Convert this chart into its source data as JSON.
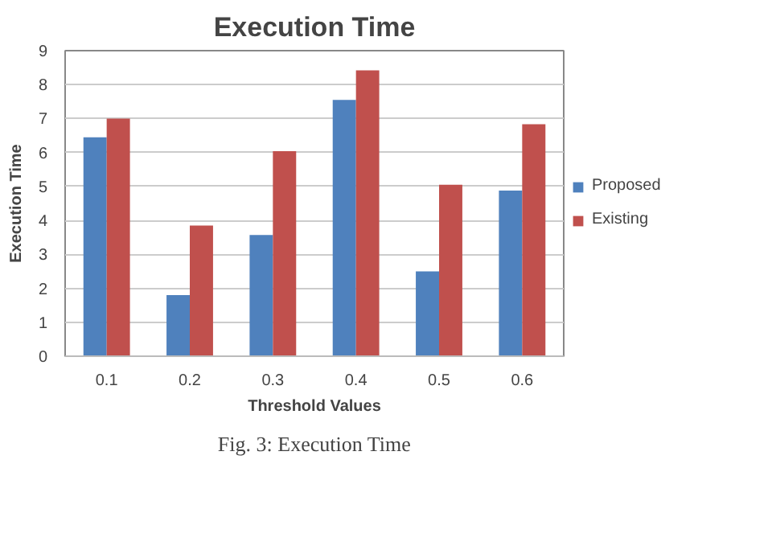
{
  "chart_data": {
    "type": "bar",
    "title": "Execution Time",
    "xlabel": "Threshold Values",
    "ylabel": "Execution Time",
    "categories": [
      "0.1",
      "0.2",
      "0.3",
      "0.4",
      "0.5",
      "0.6"
    ],
    "series": [
      {
        "name": "Proposed",
        "color": "#4f81bd",
        "values": [
          6.45,
          1.8,
          3.57,
          7.55,
          2.5,
          4.88
        ]
      },
      {
        "name": "Existing",
        "color": "#c0504d",
        "values": [
          7.0,
          3.85,
          6.04,
          8.42,
          5.05,
          6.83
        ]
      }
    ],
    "ylim": [
      0,
      9
    ],
    "yticks": [
      0,
      1,
      2,
      3,
      4,
      5,
      6,
      7,
      8,
      9
    ],
    "grid": "y",
    "legend": "right",
    "annotations": [
      "Fig. 3: Execution Time"
    ]
  }
}
